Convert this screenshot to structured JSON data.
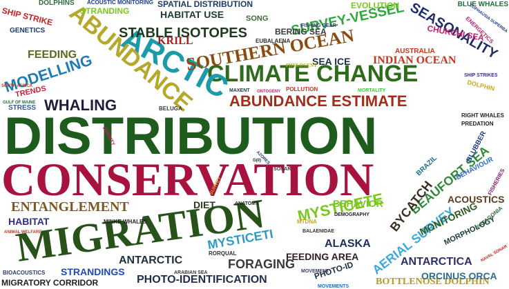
{
  "words": [
    {
      "text": "DISTRIBUTION",
      "color": "#1e5c1e"
    },
    {
      "text": "CONSERVATION",
      "color": "#a8123f"
    },
    {
      "text": "MIGRATION",
      "color": "#27521a"
    },
    {
      "text": "CLIMATE CHANGE",
      "color": "#2e6b1a"
    },
    {
      "text": "ARCTIC",
      "color": "#1b9aa8"
    },
    {
      "text": "ABUNDANCE",
      "color": "#b5a82a"
    },
    {
      "text": "SOUTHERN OCEAN",
      "color": "#8a4a10"
    },
    {
      "text": "STABLE ISOTOPES",
      "color": "#1e3a1e"
    },
    {
      "text": "ABUNDANCE ESTIMATE",
      "color": "#a32c1a"
    },
    {
      "text": "SURVEY-VESSEL",
      "color": "#2ea83a"
    },
    {
      "text": "SEASONALITY",
      "color": "#1e2e6b"
    },
    {
      "text": "MODELLING",
      "color": "#1e7ab8"
    },
    {
      "text": "WHALING",
      "color": "#1e1e3a"
    },
    {
      "text": "FEEDING",
      "color": "#5a6b1e"
    },
    {
      "text": "ENTANGLEMENT",
      "color": "#7a5a1e"
    },
    {
      "text": "MYSTICETE",
      "color": "#7ac81e"
    },
    {
      "text": "BEAUFORT SEA",
      "color": "#2e8a3a"
    },
    {
      "text": "BYCATCH",
      "color": "#3a2e1e"
    },
    {
      "text": "MYSTICETI",
      "color": "#2e9ac8"
    },
    {
      "text": "AERIAL SURVEY",
      "color": "#3aa8e0"
    },
    {
      "text": "ALASKA",
      "color": "#1e2e5a"
    },
    {
      "text": "FORAGING",
      "color": "#3a3a3a"
    },
    {
      "text": "ANTARCTIC",
      "color": "#1e2e3a"
    },
    {
      "text": "ANTARCTICA",
      "color": "#2e2e6b"
    },
    {
      "text": "PHOTO-IDENTIFICATION",
      "color": "#1e2e4a"
    },
    {
      "text": "BOTTLENOSE DOLPHIN",
      "color": "#b89a1e"
    },
    {
      "text": "MIGRATORY CORRIDOR",
      "color": "#1e1e1e"
    },
    {
      "text": "STRANDINGS",
      "color": "#1e4ab8"
    },
    {
      "text": "HABITAT",
      "color": "#2e2e8a"
    },
    {
      "text": "HABITAT USE",
      "color": "#1e3a2e"
    },
    {
      "text": "SPATIAL DISTRIBUTION",
      "color": "#1e3a6b"
    },
    {
      "text": "FEEDING AREA",
      "color": "#2e1e1e"
    },
    {
      "text": "INDIAN OCEAN",
      "color": "#c8321e"
    },
    {
      "text": "SEA ICE",
      "color": "#1e2e4a"
    },
    {
      "text": "DIET",
      "color": "#2e3a1e"
    },
    {
      "text": "BEHAVIOR",
      "color": "#7ac81e"
    },
    {
      "text": "ACOUSTICS",
      "color": "#5a3a1e"
    },
    {
      "text": "MONITORING",
      "color": "#2e5a1e"
    },
    {
      "text": "MORPHOLOGY",
      "color": "#1e3a3a"
    },
    {
      "text": "ORCINUS ORCA",
      "color": "#2e6b8a"
    },
    {
      "text": "PHOTO-ID",
      "color": "#1e2e3a"
    },
    {
      "text": "KRILL",
      "color": "#a81e1e"
    },
    {
      "text": "CHUKCHI SEA",
      "color": "#c81e6b"
    },
    {
      "text": "STRANDING",
      "color": "#7ac81e"
    },
    {
      "text": "SHIP STRIKE",
      "color": "#c81e1e"
    },
    {
      "text": "GENETICS",
      "color": "#1e3a6b"
    },
    {
      "text": "TRENDS",
      "color": "#c81e3a"
    },
    {
      "text": "STRESS",
      "color": "#3a5a8a"
    },
    {
      "text": "EVOLUTION",
      "color": "#7ac81e"
    },
    {
      "text": "BERING SEA",
      "color": "#3a3a3a"
    },
    {
      "text": "BLUE WHALES",
      "color": "#1e6b3a"
    },
    {
      "text": "AUSTRALIA",
      "color": "#c8321e"
    },
    {
      "text": "SONG",
      "color": "#3a6b3a"
    },
    {
      "text": "DOLPHINS",
      "color": "#2e6b3a"
    },
    {
      "text": "ACOUSTIC MONITORING",
      "color": "#1e3a8a"
    },
    {
      "text": "FISHING GEAR",
      "color": "#3a3a6b"
    },
    {
      "text": "EUBALAENA",
      "color": "#2e2e2e"
    },
    {
      "text": "PHYLOGENY",
      "color": "#a8a81e"
    },
    {
      "text": "MAXENT",
      "color": "#1e3a3a"
    },
    {
      "text": "ONTOGENY",
      "color": "#c81e6b"
    },
    {
      "text": "POLLUTION",
      "color": "#c8321e"
    },
    {
      "text": "MORTALITY",
      "color": "#3ac83a"
    },
    {
      "text": "BELUGA",
      "color": "#3a3a3a"
    },
    {
      "text": "ENERGETICS",
      "color": "#c81e6b"
    },
    {
      "text": "EUPHAUSIA SUPERBA",
      "color": "#1e3a8a"
    },
    {
      "text": "SHIP STRIKES",
      "color": "#3a2e8a"
    },
    {
      "text": "DOLPHIN",
      "color": "#c8a81e"
    },
    {
      "text": "RIGHT WHALES",
      "color": "#1e1e1e"
    },
    {
      "text": "PREDATION",
      "color": "#1e1e1e"
    },
    {
      "text": "BLUBBER",
      "color": "#1e3a8a"
    },
    {
      "text": "BEHAVIOUR",
      "color": "#2e6bc8"
    },
    {
      "text": "BRAZIL",
      "color": "#1e6b8a"
    },
    {
      "text": "FISHERIES",
      "color": "#8a1e6b"
    },
    {
      "text": "PATAGONIA",
      "color": "#2e6b3a"
    },
    {
      "text": "NAVAL SONAR",
      "color": "#c81e1e"
    },
    {
      "text": "SOUTH AFRICA",
      "color": "#c8321e"
    },
    {
      "text": "GULF OF MAINE",
      "color": "#1e6b3a"
    },
    {
      "text": "DENSITY",
      "color": "#c81e6b"
    },
    {
      "text": "AZORES",
      "color": "#1e3a6b"
    },
    {
      "text": "SONAR",
      "color": "#3a3a3a"
    },
    {
      "text": "G(0)",
      "color": "#1e1e1e"
    },
    {
      "text": "SURVEY",
      "color": "#c8a81e"
    },
    {
      "text": "ANATOMY",
      "color": "#1e1e1e"
    },
    {
      "text": "DEMOGRAPHY",
      "color": "#1e1e1e"
    },
    {
      "text": "MTDNA",
      "color": "#c8a81e"
    },
    {
      "text": "BALAENIDAE",
      "color": "#2e2e2e"
    },
    {
      "text": "MINKE WHALES",
      "color": "#1e1e1e"
    },
    {
      "text": "ANIMAL WELFARE",
      "color": "#c8321e"
    },
    {
      "text": "RORQUAL",
      "color": "#2e2e3a"
    },
    {
      "text": "ARABIAN SEA",
      "color": "#3a3a3a"
    },
    {
      "text": "MOVEMENT",
      "color": "#3a3a6b"
    },
    {
      "text": "MOVEMENTS",
      "color": "#1e6bc8"
    },
    {
      "text": "BIOACOUSTICS",
      "color": "#2e3a6b"
    }
  ]
}
